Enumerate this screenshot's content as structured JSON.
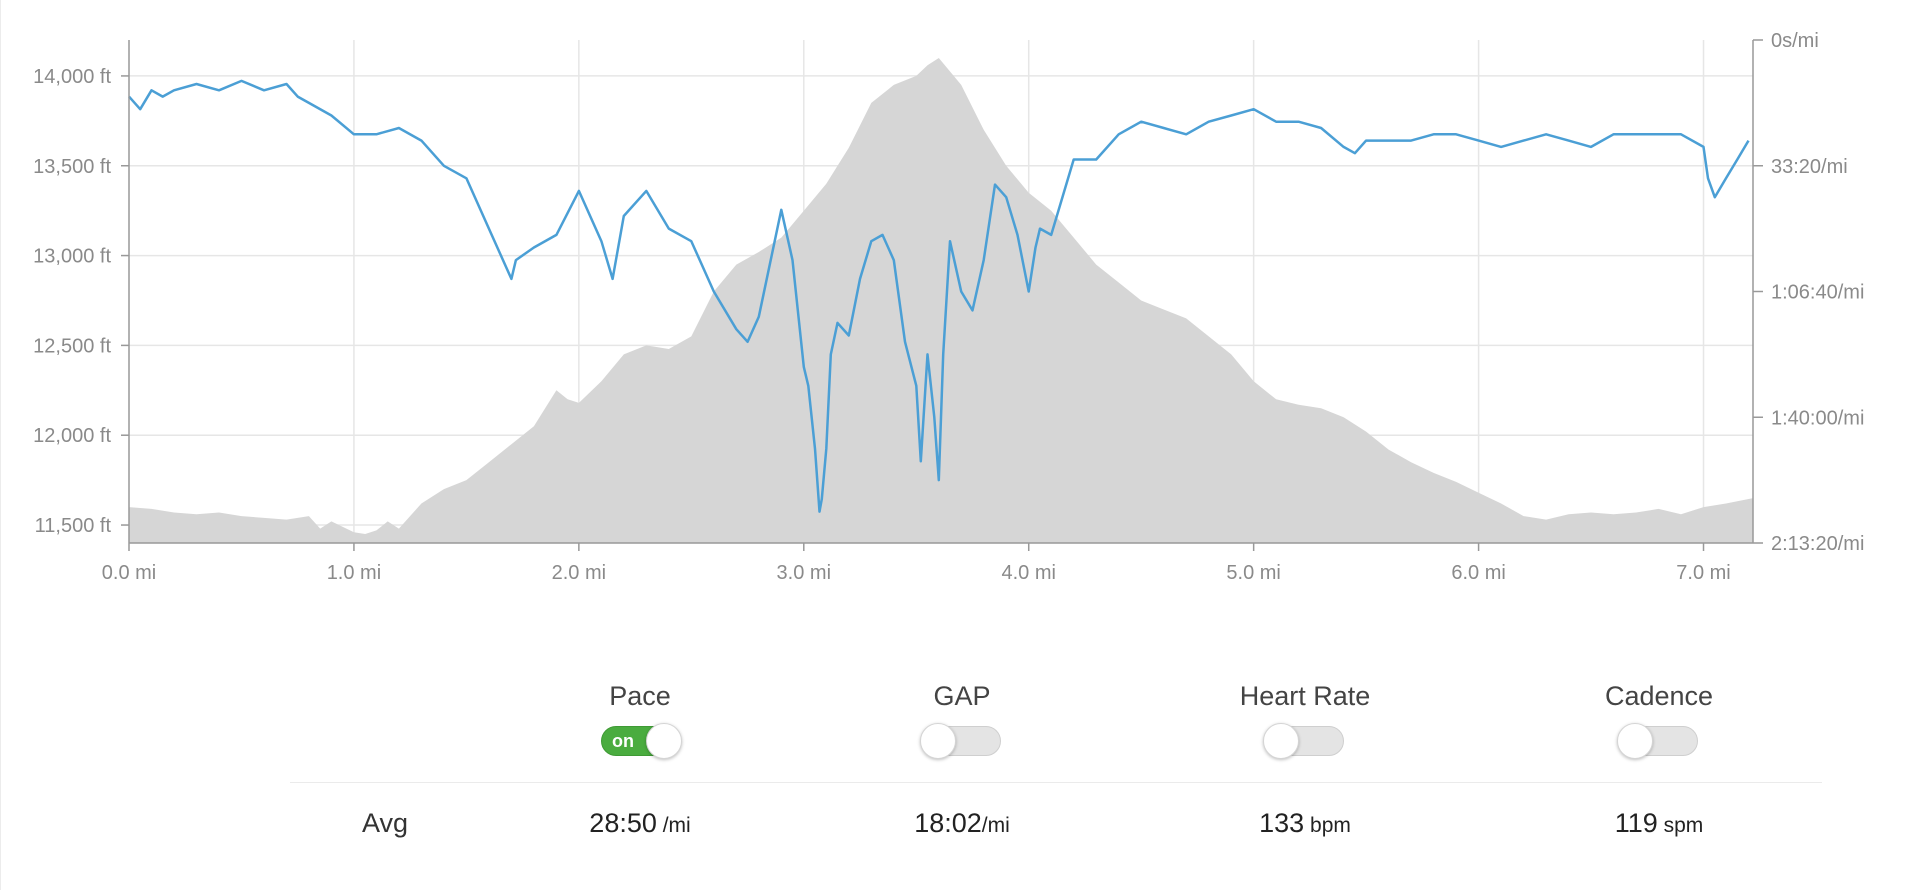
{
  "chart_data": {
    "type": "area+line",
    "x_unit_label": "mi",
    "xlim": [
      0.0,
      7.22
    ],
    "x_ticks": [
      "0.0 mi",
      "1.0 mi",
      "2.0 mi",
      "3.0 mi",
      "4.0 mi",
      "5.0 mi",
      "6.0 mi",
      "7.0 mi"
    ],
    "y_left": {
      "lim": [
        11400,
        14200
      ],
      "ticks": [
        "14,000 ft",
        "13,500 ft",
        "13,000 ft",
        "12,500 ft",
        "12,000 ft",
        "11,500 ft"
      ]
    },
    "y_right": {
      "lim_seconds_per_mile": [
        0,
        8000
      ],
      "ticks": [
        "0s/mi",
        "33:20/mi",
        "1:06:40/mi",
        "1:40:00/mi",
        "2:13:20/mi"
      ]
    },
    "grid": true,
    "series": [
      {
        "kind": "area",
        "axis": "left",
        "color": "#d6d6d6",
        "x": [
          0.0,
          0.1,
          0.2,
          0.3,
          0.4,
          0.5,
          0.6,
          0.7,
          0.8,
          0.85,
          0.9,
          1.0,
          1.05,
          1.1,
          1.15,
          1.2,
          1.3,
          1.4,
          1.5,
          1.6,
          1.7,
          1.8,
          1.9,
          1.95,
          2.0,
          2.1,
          2.2,
          2.3,
          2.4,
          2.5,
          2.6,
          2.7,
          2.8,
          2.9,
          3.0,
          3.1,
          3.2,
          3.3,
          3.4,
          3.5,
          3.55,
          3.6,
          3.7,
          3.8,
          3.9,
          4.0,
          4.1,
          4.2,
          4.3,
          4.4,
          4.5,
          4.6,
          4.7,
          4.8,
          4.9,
          5.0,
          5.1,
          5.2,
          5.3,
          5.4,
          5.5,
          5.6,
          5.7,
          5.8,
          5.9,
          6.0,
          6.1,
          6.2,
          6.3,
          6.4,
          6.5,
          6.6,
          6.7,
          6.8,
          6.9,
          7.0,
          7.1,
          7.22
        ],
        "y": [
          11600,
          11590,
          11570,
          11560,
          11570,
          11550,
          11540,
          11530,
          11550,
          11480,
          11520,
          11460,
          11450,
          11470,
          11520,
          11480,
          11620,
          11700,
          11750,
          11850,
          11950,
          12050,
          12250,
          12200,
          12180,
          12300,
          12450,
          12500,
          12480,
          12550,
          12800,
          12950,
          13020,
          13100,
          13250,
          13400,
          13600,
          13850,
          13950,
          14000,
          14060,
          14100,
          13950,
          13700,
          13500,
          13350,
          13250,
          13100,
          12950,
          12850,
          12750,
          12700,
          12650,
          12550,
          12450,
          12300,
          12200,
          12170,
          12150,
          12100,
          12020,
          11920,
          11850,
          11790,
          11740,
          11680,
          11620,
          11550,
          11530,
          11560,
          11570,
          11560,
          11570,
          11590,
          11560,
          11600,
          11620,
          11650
        ]
      },
      {
        "kind": "line",
        "name": "Pace",
        "axis": "right",
        "color": "#4b9fd5",
        "x": [
          0.0,
          0.05,
          0.1,
          0.15,
          0.2,
          0.3,
          0.4,
          0.5,
          0.6,
          0.7,
          0.75,
          0.8,
          0.9,
          1.0,
          1.1,
          1.2,
          1.3,
          1.4,
          1.5,
          1.6,
          1.7,
          1.72,
          1.8,
          1.9,
          2.0,
          2.1,
          2.15,
          2.2,
          2.3,
          2.4,
          2.5,
          2.6,
          2.7,
          2.75,
          2.8,
          2.9,
          2.95,
          3.0,
          3.02,
          3.05,
          3.07,
          3.08,
          3.1,
          3.12,
          3.15,
          3.2,
          3.25,
          3.3,
          3.35,
          3.4,
          3.45,
          3.5,
          3.52,
          3.55,
          3.58,
          3.6,
          3.62,
          3.65,
          3.7,
          3.75,
          3.8,
          3.85,
          3.9,
          3.95,
          4.0,
          4.03,
          4.05,
          4.1,
          4.2,
          4.3,
          4.4,
          4.5,
          4.6,
          4.7,
          4.8,
          4.9,
          5.0,
          5.1,
          5.2,
          5.3,
          5.4,
          5.45,
          5.5,
          5.6,
          5.7,
          5.8,
          5.9,
          6.0,
          6.1,
          6.2,
          6.3,
          6.4,
          6.5,
          6.6,
          6.7,
          6.8,
          6.9,
          7.0,
          7.02,
          7.05,
          7.1,
          7.15,
          7.2
        ],
        "y": [
          900,
          1100,
          800,
          900,
          800,
          700,
          800,
          650,
          800,
          700,
          900,
          1000,
          1200,
          1500,
          1500,
          1400,
          1600,
          2000,
          2200,
          3000,
          3800,
          3500,
          3300,
          3100,
          2400,
          3200,
          3800,
          2800,
          2400,
          3000,
          3200,
          4000,
          4600,
          4800,
          4400,
          2700,
          3500,
          5200,
          5500,
          6500,
          7500,
          7300,
          6500,
          5000,
          4500,
          4700,
          3800,
          3200,
          3100,
          3500,
          4800,
          5500,
          6700,
          5000,
          6000,
          7000,
          5000,
          3200,
          4000,
          4300,
          3500,
          2300,
          2500,
          3100,
          4000,
          3300,
          3000,
          3100,
          1900,
          1900,
          1500,
          1300,
          1400,
          1500,
          1300,
          1200,
          1100,
          1300,
          1300,
          1400,
          1700,
          1800,
          1600,
          1600,
          1600,
          1500,
          1500,
          1600,
          1700,
          1600,
          1500,
          1600,
          1700,
          1500,
          1500,
          1500,
          1500,
          1700,
          2200,
          2500,
          2200,
          1900,
          1600
        ]
      }
    ]
  },
  "metrics": [
    {
      "label": "Pace",
      "toggle": true,
      "toggle_text": "on",
      "avg_value": "28:50",
      "avg_unit": " /mi"
    },
    {
      "label": "GAP",
      "toggle": false,
      "toggle_text": "",
      "avg_value": "18:02",
      "avg_unit": "/mi"
    },
    {
      "label": "Heart Rate",
      "toggle": false,
      "toggle_text": "",
      "avg_value": "133",
      "avg_unit": " bpm"
    },
    {
      "label": "Cadence",
      "toggle": false,
      "toggle_text": "",
      "avg_value": "119",
      "avg_unit": " spm"
    }
  ],
  "avg_label": "Avg",
  "colors": {
    "pace_line": "#4b9fd5",
    "elevation_fill": "#d6d6d6",
    "toggle_on": "#4aac3f",
    "grid": "#e6e6e6",
    "axis": "#999999"
  }
}
